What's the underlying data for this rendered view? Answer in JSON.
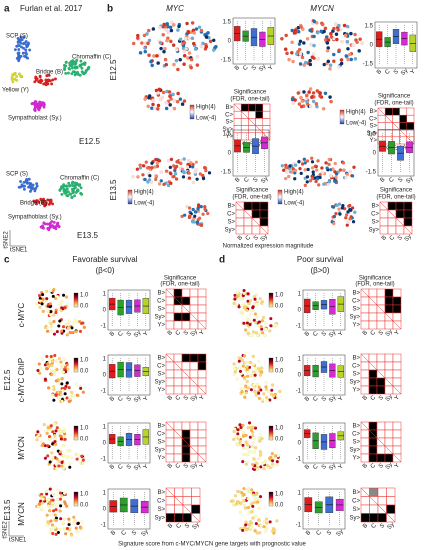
{
  "panel_a": {
    "label": "a",
    "title": "Furlan et al. 2017",
    "e125": {
      "clusters": [
        "SCP (S)",
        "Chromaffin (C)",
        "Bridge (B)",
        "Yellow (Y)",
        "Sympathoblast (Sy.)"
      ],
      "stage": "E12.5"
    },
    "e135": {
      "clusters": [
        "SCP (S)",
        "Chromaffin (C)",
        "Bridge (B)",
        "Sympathoblast (Sy.)"
      ],
      "stage": "E13.5"
    },
    "axes": [
      "tSNE2",
      "tSNE1"
    ]
  },
  "panel_b": {
    "label": "b",
    "genes": [
      "MYC",
      "MYCN"
    ],
    "stages": [
      "E12.5",
      "E13.5"
    ],
    "legend": [
      "High(4)",
      "Low(-4)"
    ],
    "significance": [
      "Significance",
      "(FDR, one-tail)"
    ],
    "box_ticks": [
      "1.5",
      "0",
      "-1.5"
    ],
    "box_categories": [
      "B",
      "C",
      "S",
      "Sy",
      "Y"
    ],
    "matrix_rows": [
      "B>",
      "C>",
      "S>",
      "Sy>",
      "Y>"
    ],
    "footer": "Normalized expression magnitude"
  },
  "panel_c": {
    "label": "c",
    "title": "Favorable survival",
    "condition": "(β<0)",
    "rows": [
      "c-MYC",
      "c-MYC ChIP",
      "MYCN",
      "MYCN"
    ],
    "stages": [
      "E12.5",
      "E13.5"
    ],
    "colorbar": [
      "1.0",
      "0.0"
    ],
    "significance": [
      "Significance",
      "(FDR, one-tail)"
    ],
    "box_ticks": [
      "1",
      "0",
      "-1"
    ],
    "axes": [
      "tSNE2",
      "tSNE1"
    ]
  },
  "panel_d": {
    "label": "d",
    "title": "Poor survival",
    "condition": "(β>0)",
    "colorbar": [
      "1.0",
      "0.0"
    ],
    "significance": [
      "Significance",
      "(FDR, one-tail)"
    ]
  },
  "footer": "Signature score from c-MYC/MYCN gene targets with prognostic value"
}
